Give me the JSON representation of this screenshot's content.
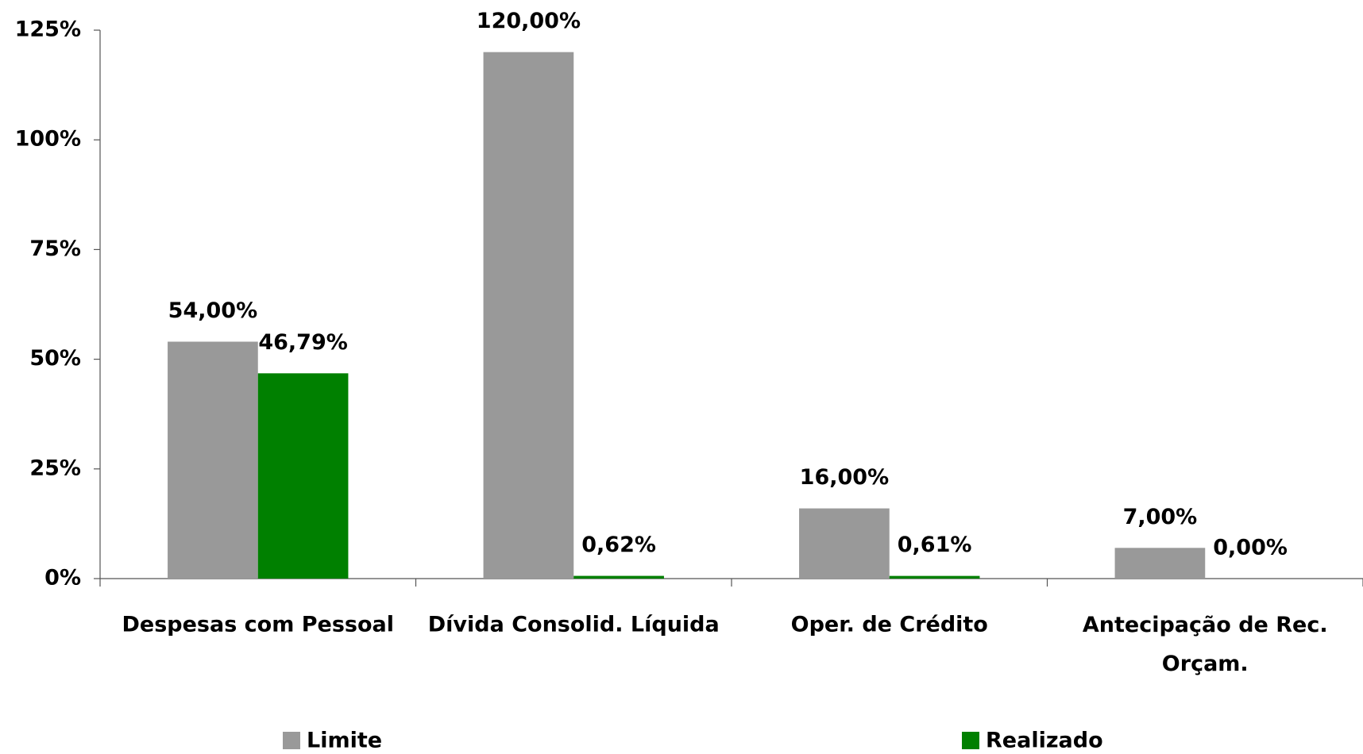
{
  "chart_data": {
    "type": "bar",
    "categories": [
      "Despesas com Pessoal",
      "Dívida Consolid. Líquida",
      "Oper. de Crédito",
      "Antecipação de Rec. Orçam."
    ],
    "series": [
      {
        "name": "Limite",
        "color": "#999999",
        "values": [
          54,
          120,
          16,
          7
        ],
        "value_labels": [
          "54,00%",
          "120,00%",
          "16,00%",
          "7,00%"
        ]
      },
      {
        "name": "Realizado",
        "color": "#008000",
        "values": [
          46.79,
          0.62,
          0.61,
          0.0
        ],
        "value_labels": [
          "46,79%",
          "0,62%",
          "0,61%",
          "0,00%"
        ]
      }
    ],
    "ylim": [
      0,
      125
    ],
    "yticks": [
      {
        "value": 0,
        "label": "0%"
      },
      {
        "value": 25,
        "label": "25%"
      },
      {
        "value": 50,
        "label": "50%"
      },
      {
        "value": 75,
        "label": "75%"
      },
      {
        "value": 100,
        "label": "100%"
      },
      {
        "value": 125,
        "label": "125%"
      }
    ],
    "legend": "bottom"
  }
}
